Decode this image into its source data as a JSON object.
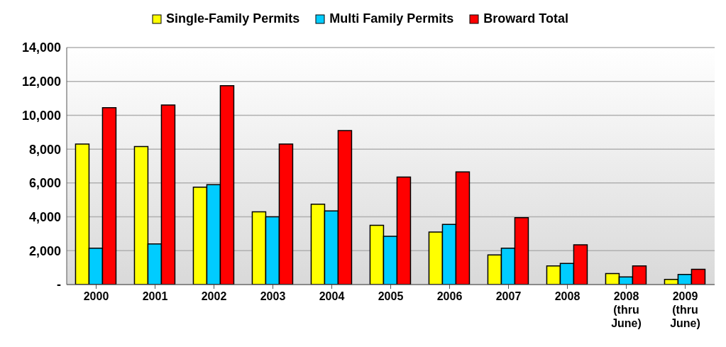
{
  "chart_data": {
    "type": "bar",
    "categories": [
      "2000",
      "2001",
      "2002",
      "2003",
      "2004",
      "2005",
      "2006",
      "2007",
      "2008",
      "2008 (thru June)",
      "2009 (thru June)"
    ],
    "series": [
      {
        "name": "Single-Family Permits",
        "color": "#ffff00",
        "values": [
          8300,
          8150,
          5750,
          4300,
          4750,
          3500,
          3100,
          1750,
          1100,
          650,
          300
        ]
      },
      {
        "name": "Multi Family Permits",
        "color": "#00ccff",
        "values": [
          2150,
          2400,
          5900,
          4000,
          4350,
          2850,
          3550,
          2150,
          1250,
          450,
          600
        ]
      },
      {
        "name": "Broward Total",
        "color": "#ff0000",
        "values": [
          10450,
          10600,
          11750,
          8300,
          9100,
          6350,
          6650,
          3950,
          2350,
          1100,
          900
        ]
      }
    ],
    "ylim": [
      0,
      14000
    ],
    "yticks": [
      {
        "value": 0,
        "label": "-"
      },
      {
        "value": 2000,
        "label": "2,000"
      },
      {
        "value": 4000,
        "label": "4,000"
      },
      {
        "value": 6000,
        "label": "6,000"
      },
      {
        "value": 8000,
        "label": "8,000"
      },
      {
        "value": 10000,
        "label": "10,000"
      },
      {
        "value": 12000,
        "label": "12,000"
      },
      {
        "value": 14000,
        "label": "14,000"
      }
    ],
    "grid": "y",
    "legend": "top"
  }
}
